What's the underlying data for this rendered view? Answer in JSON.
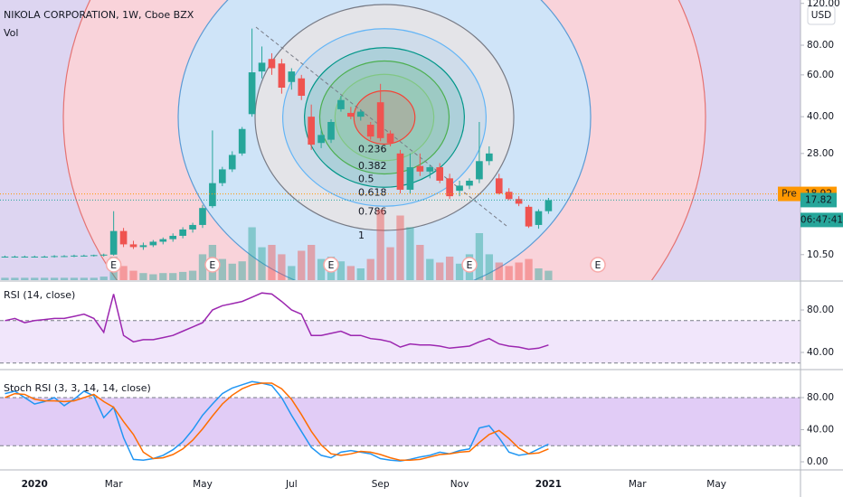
{
  "chart_data": [
    {
      "type": "candlestick",
      "title": "NIKOLA CORPORATION, 1W, Cboe BZX",
      "volume_label": "Vol",
      "currency": "USD",
      "categories": [
        null,
        null,
        null,
        "2020",
        null,
        null,
        null,
        null,
        null,
        null,
        null,
        "Mar",
        null,
        null,
        null,
        null,
        null,
        null,
        null,
        null,
        "May",
        null,
        null,
        null,
        null,
        null,
        null,
        null,
        null,
        "Jul",
        null,
        null,
        null,
        null,
        null,
        null,
        null,
        null,
        "Sep",
        null,
        null,
        null,
        null,
        null,
        null,
        null,
        "Nov",
        null,
        null,
        null,
        null,
        null,
        null,
        null,
        null,
        "2021",
        null,
        null,
        null,
        null,
        null,
        null,
        null,
        null,
        "Mar",
        null,
        null,
        null,
        null,
        null,
        null,
        null,
        "May",
        null,
        null,
        null,
        null,
        null,
        null,
        null,
        null
      ],
      "open": [
        10.3,
        10.3,
        10.3,
        10.3,
        10.3,
        10.3,
        10.35,
        10.35,
        10.4,
        10.4,
        10.45,
        10.5,
        13.2,
        11.6,
        11.3,
        11.5,
        11.9,
        12.2,
        12.6,
        13.4,
        14.0,
        16.8,
        21.0,
        24.0,
        28.0,
        41.0,
        62.0,
        70.0,
        67.0,
        56.0,
        58.0,
        40.0,
        31.0,
        32.0,
        43.0,
        41.5,
        40.0,
        37.0,
        46.0,
        34.0,
        28.0,
        19.7,
        24.8,
        23.5,
        24.5,
        22.0,
        19.5,
        20.5,
        21.8,
        26.0,
        22.0,
        19.3,
        18.0,
        16.7,
        14.0,
        16.0,
        null,
        null,
        null,
        null,
        null,
        null,
        null,
        null,
        null,
        null,
        null,
        null,
        null,
        null,
        null,
        null,
        null,
        null,
        null,
        null,
        null,
        null,
        null,
        null,
        null
      ],
      "high": [
        10.4,
        10.4,
        10.4,
        10.4,
        10.4,
        10.45,
        10.45,
        10.5,
        10.5,
        10.5,
        10.6,
        16.0,
        13.6,
        12.0,
        11.8,
        12.1,
        12.4,
        12.9,
        13.7,
        14.3,
        17.0,
        35.0,
        24.6,
        28.6,
        36.2,
        93.99,
        79.0,
        74.0,
        70.0,
        64.0,
        60.0,
        45.0,
        35.0,
        39.0,
        49.0,
        44.0,
        43.0,
        38.0,
        55.0,
        35.0,
        29.0,
        28.0,
        28.0,
        25.0,
        25.5,
        23.0,
        21.5,
        22.0,
        38.0,
        30.0,
        23.0,
        20.0,
        18.5,
        17.0,
        16.3,
        18.2,
        null,
        null,
        null,
        null,
        null,
        null,
        null,
        null,
        null,
        null,
        null,
        null,
        null,
        null,
        null,
        null,
        null,
        null,
        null,
        null,
        null,
        null,
        null,
        null,
        null
      ],
      "low": [
        10.2,
        10.2,
        10.2,
        10.2,
        10.2,
        10.2,
        10.25,
        10.25,
        10.3,
        10.3,
        10.3,
        10.4,
        11.3,
        11.1,
        11.0,
        11.3,
        11.6,
        11.9,
        12.3,
        13.0,
        13.6,
        16.5,
        20.4,
        23.4,
        27.4,
        40.0,
        58.0,
        60.0,
        50.0,
        52.0,
        47.0,
        29.0,
        29.5,
        31.0,
        42.0,
        39.0,
        38.5,
        32.0,
        31.5,
        30.0,
        19.0,
        19.0,
        22.5,
        22.0,
        21.0,
        18.0,
        18.5,
        19.8,
        21.0,
        25.0,
        18.8,
        17.8,
        16.8,
        13.6,
        13.5,
        15.6,
        null,
        null,
        null,
        null,
        null,
        null,
        null,
        null,
        null,
        null,
        null,
        null,
        null,
        null,
        null,
        null,
        null,
        null,
        null,
        null,
        null,
        null,
        null,
        null,
        null
      ],
      "close": [
        10.3,
        10.3,
        10.3,
        10.3,
        10.3,
        10.35,
        10.35,
        10.4,
        10.4,
        10.45,
        10.5,
        13.2,
        11.6,
        11.3,
        11.5,
        11.9,
        12.2,
        12.6,
        13.4,
        14.0,
        16.5,
        21.0,
        24.0,
        27.6,
        35.5,
        61.5,
        67.5,
        64.0,
        53.0,
        62.0,
        49.0,
        30.5,
        33.5,
        38.0,
        47.0,
        40.0,
        42.0,
        33.0,
        32.5,
        31.0,
        19.7,
        24.5,
        23.5,
        24.5,
        21.5,
        18.5,
        20.5,
        21.5,
        26.0,
        28.0,
        19.0,
        18.0,
        17.2,
        13.8,
        16.0,
        17.82,
        null,
        null,
        null,
        null,
        null,
        null,
        null,
        null,
        null,
        null,
        null,
        null,
        null,
        null,
        null,
        null,
        null,
        null,
        null,
        null,
        null,
        null,
        null,
        null,
        null
      ],
      "volume": [
        2,
        2,
        2,
        2,
        2,
        2,
        2,
        2,
        2,
        2,
        3,
        20,
        12,
        8,
        6,
        5,
        6,
        6,
        7,
        8,
        22,
        30,
        18,
        14,
        16,
        45,
        28,
        30,
        22,
        12,
        25,
        30,
        18,
        20,
        16,
        12,
        10,
        18,
        60,
        28,
        55,
        45,
        30,
        18,
        15,
        20,
        14,
        22,
        40,
        22,
        15,
        12,
        15,
        18,
        10,
        8,
        null,
        null,
        null,
        null,
        null,
        null,
        null,
        null,
        null,
        null,
        null,
        null,
        null,
        null,
        null,
        null,
        null,
        null,
        null,
        null,
        null,
        null,
        null,
        null,
        null
      ],
      "events": [
        null,
        null,
        null,
        null,
        null,
        null,
        null,
        null,
        null,
        null,
        null,
        "E",
        null,
        null,
        null,
        null,
        null,
        null,
        null,
        null,
        null,
        "E",
        null,
        null,
        null,
        null,
        null,
        null,
        null,
        null,
        null,
        null,
        null,
        "E",
        null,
        null,
        null,
        null,
        null,
        null,
        null,
        null,
        null,
        null,
        null,
        null,
        null,
        "E",
        null,
        null,
        null,
        null,
        null,
        null,
        null,
        null,
        null,
        null,
        null,
        null,
        "E",
        null,
        null,
        null,
        null,
        null,
        null,
        null,
        null,
        null,
        null,
        null,
        null,
        null,
        null,
        null,
        null,
        null,
        null,
        null,
        null
      ],
      "up_color": "#26a69a",
      "down_color": "#ef5350",
      "log_scale": true,
      "ylim": [
        8.2,
        124
      ],
      "yticks": [
        {
          "value": 10.5,
          "label": "10.50"
        },
        {
          "value": 28,
          "label": "28.00"
        },
        {
          "value": 40,
          "label": "40.00"
        },
        {
          "value": 60,
          "label": "60.00"
        },
        {
          "value": 80,
          "label": "80.00"
        },
        {
          "value": 120,
          "label": "120.00"
        }
      ],
      "price_tags": [
        {
          "label": "Pre",
          "value": 18.92,
          "color": "#ff9800"
        },
        {
          "value": 17.82,
          "color": "#26a69a"
        }
      ],
      "countdown": "06:47:41",
      "fib_levels": [
        0.236,
        0.382,
        0.5,
        0.618,
        0.786,
        1
      ],
      "fib_colors": [
        "#f44336",
        "#81c784",
        "#4caf50",
        "#009688",
        "#64b5f6",
        "#787b86"
      ]
    },
    {
      "type": "line",
      "title": "RSI (14, close)",
      "color": "#9c27b0",
      "values": [
        70,
        72,
        68,
        70,
        71,
        72,
        72,
        74,
        76,
        72,
        59,
        95,
        56,
        50,
        52,
        52,
        54,
        56,
        60,
        64,
        68,
        80,
        84,
        86,
        88,
        92,
        96,
        95,
        88,
        80,
        76,
        56,
        56,
        58,
        60,
        56,
        56,
        53,
        52,
        50,
        45,
        48,
        47,
        47,
        46,
        44,
        45,
        46,
        50,
        53,
        48,
        46,
        45,
        43,
        44,
        47,
        null,
        null,
        null,
        null,
        null,
        null,
        null,
        null,
        null,
        null,
        null,
        null,
        null,
        null,
        null,
        null,
        null,
        null,
        null,
        null,
        null,
        null,
        null,
        null,
        null
      ],
      "ylim": [
        24.7,
        106.4
      ],
      "yticks": [
        {
          "value": 40,
          "label": "40.00"
        },
        {
          "value": 80,
          "label": "80.00"
        }
      ],
      "band": [
        30,
        70
      ]
    },
    {
      "type": "line",
      "title": "Stoch RSI (3, 3, 14, 14, close)",
      "series": [
        {
          "color": "#2196f3",
          "values": [
            85,
            88,
            80,
            72,
            75,
            80,
            70,
            78,
            88,
            82,
            55,
            68,
            30,
            3,
            2,
            4,
            8,
            15,
            25,
            40,
            58,
            72,
            85,
            92,
            96,
            100,
            98,
            95,
            80,
            58,
            38,
            18,
            8,
            5,
            12,
            14,
            12,
            10,
            4,
            2,
            1,
            3,
            6,
            8,
            12,
            10,
            14,
            16,
            42,
            45,
            30,
            12,
            8,
            10,
            16,
            22,
            null,
            null,
            null,
            null,
            null,
            null,
            null,
            null,
            null,
            null,
            null,
            null,
            null,
            null,
            null,
            null,
            null,
            null,
            null,
            null,
            null,
            null,
            null,
            null,
            null
          ]
        },
        {
          "color": "#ff6d00",
          "values": [
            80,
            85,
            84,
            78,
            76,
            76,
            75,
            76,
            80,
            84,
            75,
            68,
            50,
            34,
            12,
            4,
            5,
            9,
            16,
            27,
            41,
            57,
            72,
            83,
            91,
            96,
            98,
            98,
            91,
            78,
            59,
            38,
            21,
            10,
            8,
            10,
            13,
            12,
            9,
            5,
            2,
            2,
            3,
            6,
            9,
            10,
            12,
            13,
            24,
            34,
            39,
            29,
            17,
            10,
            11,
            16,
            null,
            null,
            null,
            null,
            null,
            null,
            null,
            null,
            null,
            null,
            null,
            null,
            null,
            null,
            null,
            null,
            null,
            null,
            null,
            null,
            null,
            null,
            null,
            null,
            null
          ]
        }
      ],
      "ylim": [
        -10.1,
        113.8
      ],
      "yticks": [
        {
          "value": 0,
          "label": "0.00"
        },
        {
          "value": 40,
          "label": "40.00"
        },
        {
          "value": 80,
          "label": "80.00"
        }
      ],
      "band": [
        20,
        80
      ]
    }
  ]
}
